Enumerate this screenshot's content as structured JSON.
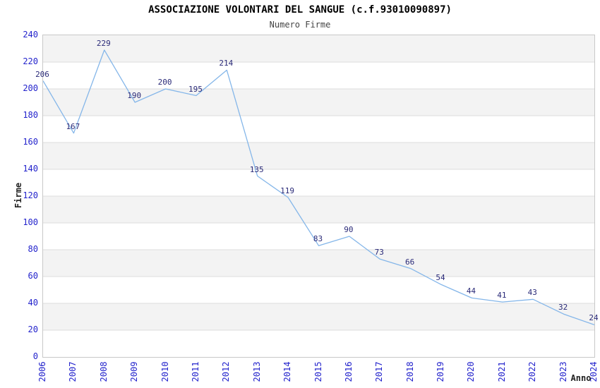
{
  "title": "ASSOCIAZIONE VOLONTARI DEL SANGUE (c.f.93010090897)",
  "subtitle": "Numero Firme",
  "chart_data": {
    "type": "line",
    "title": "ASSOCIAZIONE VOLONTARI DEL SANGUE (c.f.93010090897)",
    "subtitle": "Numero Firme",
    "xlabel": "Anno",
    "ylabel": "Firme",
    "x": [
      2006,
      2007,
      2008,
      2009,
      2010,
      2011,
      2012,
      2013,
      2014,
      2015,
      2016,
      2017,
      2018,
      2019,
      2020,
      2021,
      2022,
      2023,
      2024
    ],
    "values": [
      206,
      167,
      229,
      190,
      200,
      195,
      214,
      135,
      119,
      83,
      90,
      73,
      66,
      54,
      44,
      41,
      43,
      32,
      24
    ],
    "ylim": [
      0,
      240
    ],
    "ytick_step": 20,
    "grid": true,
    "legend": false,
    "band_pattern": "gray stripes on 20-40, 60-80, 100-120, 140-160, 180-200, 220-240",
    "colors": {
      "line": "#84b6e9",
      "point_label": "#2a2a78",
      "tick_label": "#2323cc",
      "band": "#f3f3f3",
      "gridline": "#dcdcdc",
      "plot_border": "#c8c8c8",
      "title": "#000000",
      "subtitle": "#444444",
      "axis_title": "#222222"
    }
  }
}
